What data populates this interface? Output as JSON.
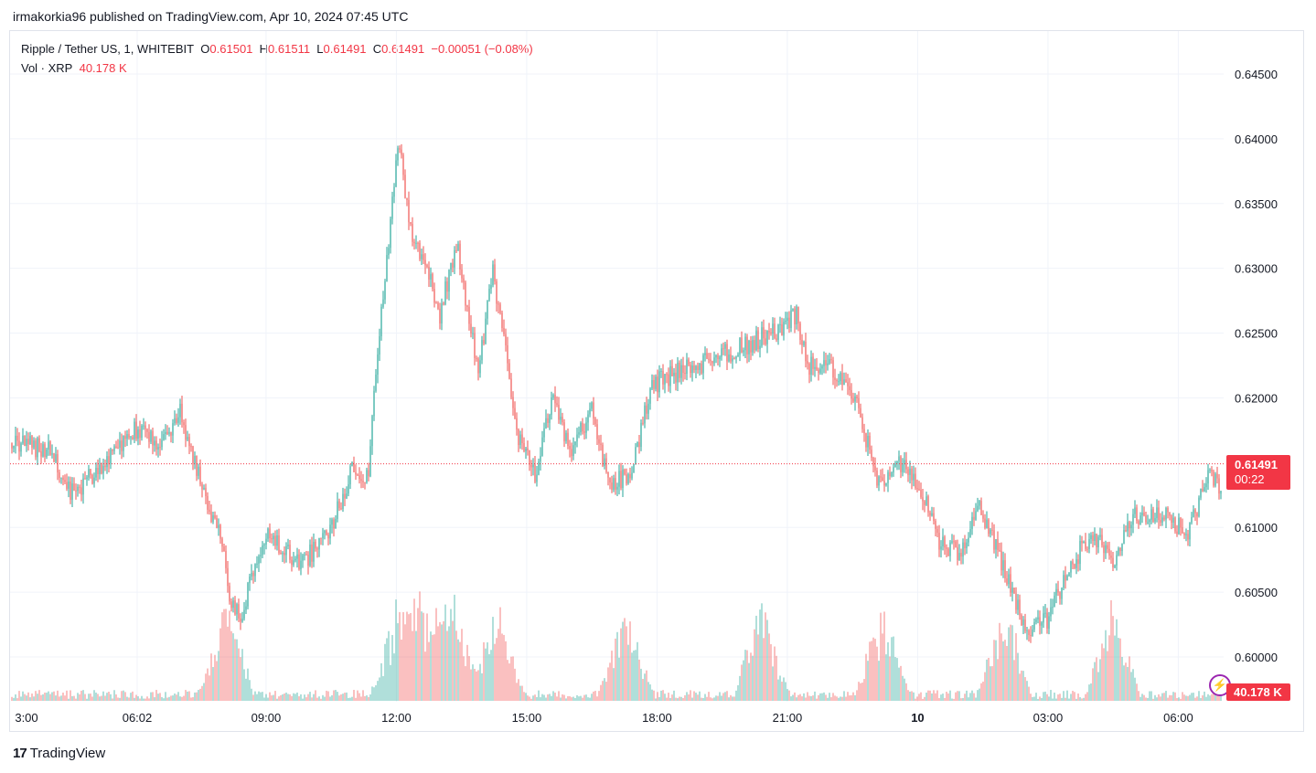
{
  "publisher": "irmakorkia96 published on TradingView.com, Apr 10, 2024 07:45 UTC",
  "legend": {
    "symbol": "Ripple / Tether US, 1, WHITEBIT",
    "o_label": "O",
    "o": "0.61501",
    "h_label": "H",
    "h": "0.61511",
    "l_label": "L",
    "l": "0.61491",
    "c_label": "C",
    "c": "0.61491",
    "change": "−0.00051 (−0.08%)",
    "vol_label": "Vol · XRP",
    "vol": "40.178 K"
  },
  "price_tag": {
    "price": "0.61491",
    "countdown": "00:22"
  },
  "vol_tag": "40.178 K",
  "logo": {
    "mark": "17",
    "text": "TradingView"
  },
  "colors": {
    "up": "#26a69a",
    "down": "#ef5350",
    "last": "#f23645",
    "grid": "#f0f3fa"
  },
  "chart_data": {
    "type": "candlestick",
    "y_ticks": [
      "0.64500",
      "0.64000",
      "0.63500",
      "0.63000",
      "0.62500",
      "0.62000",
      "0.61000",
      "0.60500",
      "0.60000"
    ],
    "ylim": [
      0.5975,
      0.6465
    ],
    "x_ticks": [
      "3:00",
      "06:02",
      "09:00",
      "12:00",
      "15:00",
      "18:00",
      "21:00",
      "10",
      "03:00",
      "06:00"
    ],
    "last_price": 0.61491,
    "path_hours": [
      3.2,
      4.0,
      4.5,
      5.3,
      6.0,
      6.6,
      7.0,
      7.5,
      8.0,
      8.15,
      8.4,
      9.0,
      9.8,
      10.5,
      11.0,
      11.35,
      11.6,
      11.8,
      12.05,
      12.3,
      12.7,
      13.0,
      13.4,
      13.6,
      13.9,
      14.2,
      14.5,
      14.8,
      15.2,
      15.6,
      16.0,
      16.5,
      16.9,
      17.4,
      17.9,
      18.5,
      19.3,
      20.0,
      20.9,
      21.2,
      21.5,
      22.0,
      22.6,
      23.1,
      23.5,
      24.0,
      24.5,
      25.0,
      25.4,
      26.0,
      26.5,
      27.0,
      27.5,
      28.0,
      28.5,
      29.0,
      29.6,
      30.2,
      30.7,
      31.2,
      31.7
    ],
    "path_price": [
      0.6165,
      0.616,
      0.6125,
      0.615,
      0.6175,
      0.6165,
      0.619,
      0.6135,
      0.6085,
      0.604,
      0.603,
      0.6095,
      0.607,
      0.61,
      0.6145,
      0.614,
      0.625,
      0.631,
      0.64,
      0.633,
      0.63,
      0.6265,
      0.632,
      0.627,
      0.622,
      0.63,
      0.624,
      0.617,
      0.614,
      0.62,
      0.616,
      0.619,
      0.613,
      0.6145,
      0.621,
      0.622,
      0.623,
      0.624,
      0.6255,
      0.6265,
      0.6225,
      0.6225,
      0.6195,
      0.6135,
      0.615,
      0.6135,
      0.609,
      0.608,
      0.612,
      0.6065,
      0.602,
      0.603,
      0.607,
      0.6095,
      0.6075,
      0.611,
      0.611,
      0.6095,
      0.614,
      0.612,
      0.6149
    ],
    "volume_spike_hours": [
      8.1,
      12.05,
      12.6,
      13.3,
      14.3,
      17.3,
      20.4,
      23.2,
      26.0,
      28.5
    ]
  }
}
